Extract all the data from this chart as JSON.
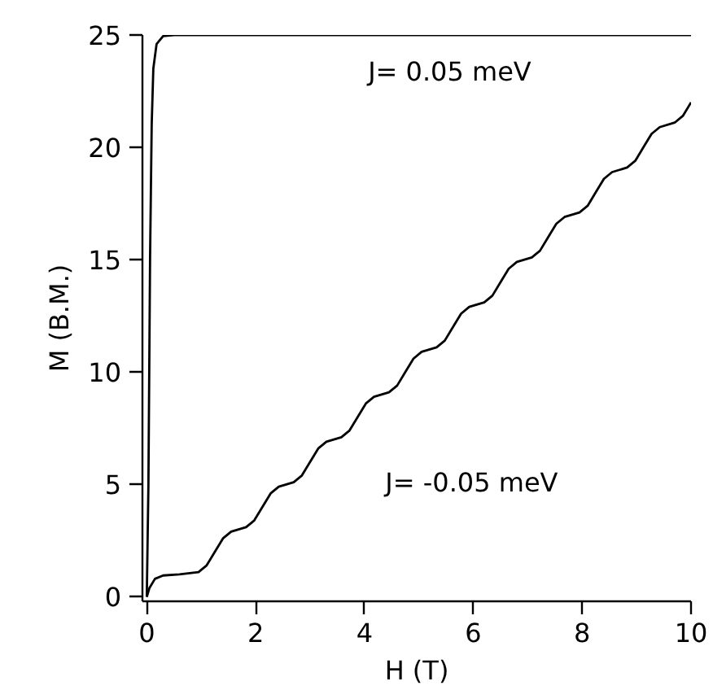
{
  "chart_data": {
    "type": "line",
    "xlabel": "H (T)",
    "ylabel": "M (B.M.)",
    "xlim": [
      -0.08,
      10
    ],
    "ylim": [
      -0.2,
      25
    ],
    "xticks": [
      0,
      2,
      4,
      6,
      8,
      10
    ],
    "yticks": [
      0,
      5,
      10,
      15,
      20,
      25
    ],
    "grid": false,
    "legend": false,
    "marker": "none",
    "line_style": "solid",
    "series": [
      {
        "name": "J= 0.05 meV",
        "color": "#000000",
        "x": [
          0,
          0.03,
          0.06,
          0.09,
          0.12,
          0.18,
          0.3,
          0.5,
          10
        ],
        "values": [
          0,
          5,
          15,
          21,
          23.5,
          24.6,
          24.95,
          25,
          25
        ]
      },
      {
        "name": "J= -0.05 meV",
        "color": "#000000",
        "x": [
          0,
          0.05,
          0.15,
          0.3,
          0.6,
          0.95,
          1.1,
          1.25,
          1.4,
          1.55,
          1.825,
          1.975,
          2.125,
          2.275,
          2.425,
          2.7,
          2.85,
          3.0,
          3.15,
          3.3,
          3.575,
          3.725,
          3.875,
          4.025,
          4.175,
          4.45,
          4.6,
          4.75,
          4.9,
          5.05,
          5.325,
          5.475,
          5.625,
          5.775,
          5.925,
          6.2,
          6.35,
          6.5,
          6.65,
          6.8,
          7.075,
          7.225,
          7.375,
          7.525,
          7.675,
          7.95,
          8.1,
          8.25,
          8.4,
          8.55,
          8.825,
          8.975,
          9.125,
          9.275,
          9.425,
          9.7,
          9.85,
          10.0
        ],
        "values": [
          0,
          0.4,
          0.8,
          0.95,
          1.0,
          1.1,
          1.4,
          2,
          2.6,
          2.9,
          3.1,
          3.4,
          4,
          4.6,
          4.9,
          5.1,
          5.4,
          6,
          6.6,
          6.9,
          7.1,
          7.4,
          8,
          8.6,
          8.9,
          9.1,
          9.4,
          10,
          10.6,
          10.9,
          11.1,
          11.4,
          12,
          12.6,
          12.9,
          13.1,
          13.4,
          14,
          14.6,
          14.9,
          15.1,
          15.4,
          16,
          16.6,
          16.9,
          17.1,
          17.4,
          18,
          18.6,
          18.9,
          19.1,
          19.4,
          20,
          20.6,
          20.9,
          21.1,
          21.4,
          22
        ]
      }
    ]
  }
}
